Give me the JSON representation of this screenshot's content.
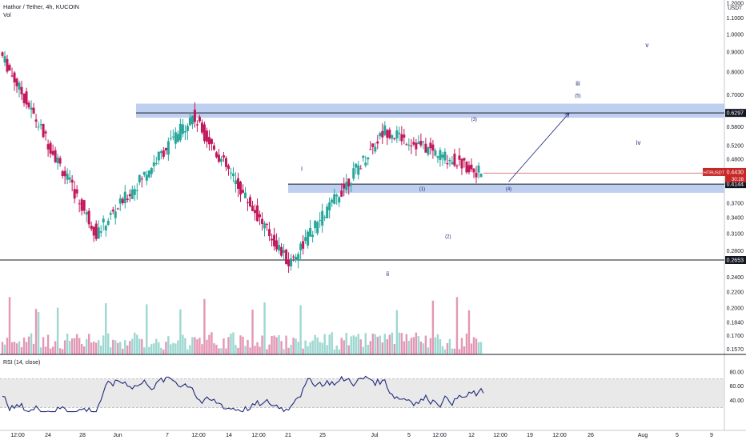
{
  "header": {
    "symbol_line": "Hathor / Tether, 4h, KUCOIN",
    "volume_label": "Vol",
    "quote_currency": "USDT"
  },
  "rsi_panel": {
    "label": "RSI (14, close)",
    "ticks": [
      "80.00",
      "60.00",
      "40.00"
    ]
  },
  "price_badges": {
    "ticker": "HTRUSDT",
    "last_price": "0.4430",
    "countdown": "30:28"
  },
  "colors": {
    "up": "#26a69a",
    "down": "#c2185b",
    "zone": "#b3c7ec",
    "rsi_line": "#1e2a78",
    "rsi_band": "#e0e0e0",
    "last_price_badge": "#c62828"
  },
  "chart_data": {
    "type": "candlestick",
    "scale": "log",
    "price_axis_labels": [
      "1.2000",
      "1.1000",
      "1.0000",
      "0.9000",
      "0.8000",
      "0.7000",
      "0.6297",
      "0.5800",
      "0.5200",
      "0.4800",
      "0.4430",
      "0.4144",
      "0.3700",
      "0.3400",
      "0.3100",
      "0.2800",
      "0.2653",
      "0.2400",
      "0.2200",
      "0.2000",
      "0.1840",
      "0.1700",
      "0.1570"
    ],
    "time_axis_labels": [
      "12:00",
      "24",
      "28",
      "Jun",
      "7",
      "12:00",
      "14",
      "12:00",
      "21",
      "25",
      "Jul",
      "5",
      "12:00",
      "12",
      "12:00",
      "19",
      "12:00",
      "26",
      "Aug",
      "5",
      "9"
    ],
    "ohlc_series": [
      {
        "start_price": 0.9,
        "end_price": 0.31,
        "period": "late May decline"
      },
      {
        "start_price": 0.31,
        "end_price": 0.62,
        "period": "late May to early June rally"
      },
      {
        "start_price": 0.62,
        "end_price": 0.26,
        "period": "June to late June decline"
      },
      {
        "start_price": 0.26,
        "end_price": 0.57,
        "period": "late June to mid July rally"
      },
      {
        "start_price": 0.57,
        "end_price": 0.443,
        "period": "mid July pullback"
      }
    ],
    "horizontal_levels": [
      {
        "value": 0.6297,
        "label": "0.6297"
      },
      {
        "value": 0.4144,
        "label": "0.4144"
      },
      {
        "value": 0.2653,
        "label": "0.2653"
      }
    ],
    "zones": [
      {
        "low": 0.6297,
        "high": 0.665
      },
      {
        "low": 0.405,
        "high": 0.4144
      }
    ],
    "wave_labels": [
      {
        "text": "i",
        "price": 0.455,
        "date": "Jun 22"
      },
      {
        "text": "ii",
        "price": 0.245,
        "date": "Jul 2"
      },
      {
        "text": "(1)",
        "price": 0.405,
        "date": "Jul 6"
      },
      {
        "text": "(2)",
        "price": 0.306,
        "date": "Jul 9"
      },
      {
        "text": "(3)",
        "price": 0.61,
        "date": "Jul 12"
      },
      {
        "text": "(4)",
        "price": 0.405,
        "date": "Jul 16"
      },
      {
        "text": "(5)",
        "price": 0.7,
        "date": "Jul 24"
      },
      {
        "text": "iii",
        "price": 0.75,
        "date": "Jul 24"
      },
      {
        "text": "iv",
        "price": 0.53,
        "date": "Jul 31"
      },
      {
        "text": "v",
        "price": 0.94,
        "date": "Aug 1"
      }
    ],
    "projection_arrow": {
      "from_price": 0.42,
      "to_price": 0.63,
      "from_date": "Jul 16",
      "to_date": "Jul 23"
    },
    "rsi": {
      "range": [
        0,
        100
      ],
      "band": [
        30,
        70
      ],
      "last_value": 50
    }
  }
}
